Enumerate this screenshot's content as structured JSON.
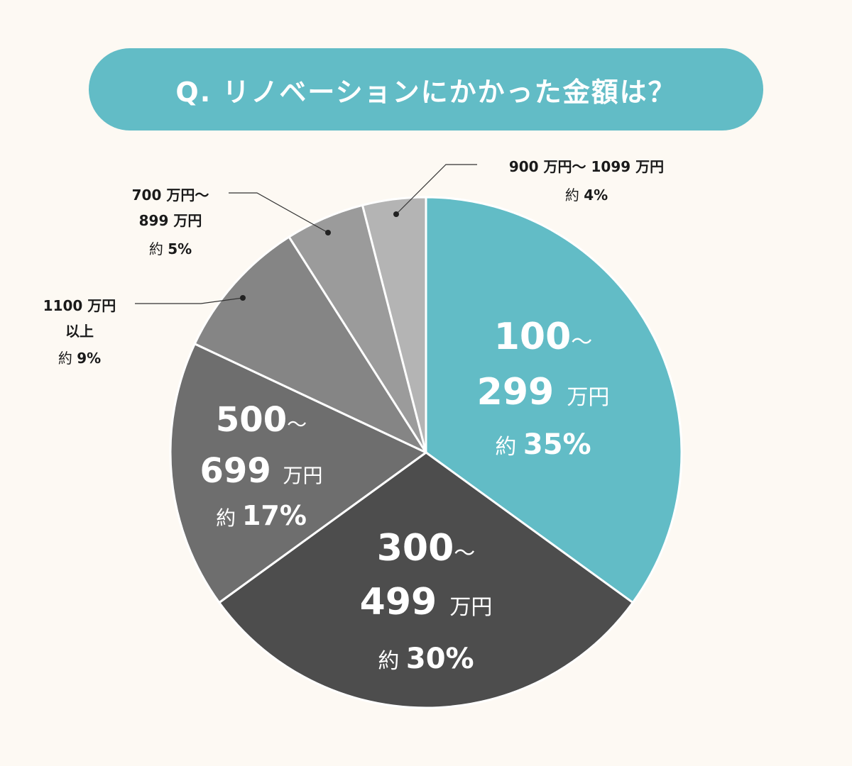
{
  "title": "Q. リノベーションにかかった金額は？",
  "colors": {
    "background": "#fdf9f3",
    "title_pill": "#62bcc6",
    "divider": "#ffffff",
    "leader": "#333333"
  },
  "chart_data": {
    "type": "pie",
    "title": "Q. リノベーションにかかった金額は？",
    "start": "12 o'clock",
    "direction": "clockwise",
    "unit": "%",
    "slices": [
      {
        "category": "100〜299万円",
        "value": 35,
        "color": "#62bcc6",
        "label_position": "inside",
        "label_style": "large",
        "label_lines": [
          [
            {
              "t": "100",
              "w": "b"
            },
            {
              "t": "〜",
              "w": "n"
            }
          ],
          [
            {
              "t": "299 ",
              "w": "b"
            },
            {
              "t": "万円",
              "w": "n"
            }
          ],
          [
            {
              "t": "約 ",
              "w": "n"
            },
            {
              "t": "35%",
              "w": "b"
            }
          ]
        ]
      },
      {
        "category": "300〜499万円",
        "value": 30,
        "color": "#4d4d4d",
        "label_position": "inside",
        "label_style": "large",
        "label_lines": [
          [
            {
              "t": "300",
              "w": "b"
            },
            {
              "t": "〜",
              "w": "n"
            }
          ],
          [
            {
              "t": "499 ",
              "w": "b"
            },
            {
              "t": "万円",
              "w": "n"
            }
          ],
          [
            {
              "t": "約 ",
              "w": "n"
            },
            {
              "t": "30%",
              "w": "b"
            }
          ]
        ]
      },
      {
        "category": "500〜699万円",
        "value": 17,
        "color": "#6e6e6e",
        "label_position": "inside",
        "label_style": "medium",
        "label_lines": [
          [
            {
              "t": "500",
              "w": "b"
            },
            {
              "t": "〜",
              "w": "n"
            }
          ],
          [
            {
              "t": "699 ",
              "w": "b"
            },
            {
              "t": "万円",
              "w": "n"
            }
          ],
          [
            {
              "t": "約 ",
              "w": "n"
            },
            {
              "t": "17%",
              "w": "b"
            }
          ]
        ]
      },
      {
        "category": "1100万円以上",
        "value": 9,
        "color": "#858585",
        "label_position": "outside-left",
        "label_lines": [
          [
            {
              "t": "1100 万円",
              "w": "b"
            }
          ],
          [
            {
              "t": "以上",
              "w": "b"
            }
          ],
          [
            {
              "t": "約 ",
              "w": "n"
            },
            {
              "t": "9%",
              "w": "b"
            }
          ]
        ]
      },
      {
        "category": "700万円〜899万円",
        "value": 5,
        "color": "#9b9b9b",
        "label_position": "outside-upper-left",
        "label_lines": [
          [
            {
              "t": "700 万円〜",
              "w": "b"
            }
          ],
          [
            {
              "t": "899 万円",
              "w": "b"
            }
          ],
          [
            {
              "t": "約 ",
              "w": "n"
            },
            {
              "t": "5%",
              "w": "b"
            }
          ]
        ]
      },
      {
        "category": "900万円〜1099万円",
        "value": 4,
        "color": "#b4b4b4",
        "label_position": "outside-top",
        "label_lines": [
          [
            {
              "t": "900 万円〜 1099 万円",
              "w": "b"
            }
          ],
          [
            {
              "t": "約 ",
              "w": "n"
            },
            {
              "t": "4%",
              "w": "b"
            }
          ]
        ]
      }
    ]
  }
}
